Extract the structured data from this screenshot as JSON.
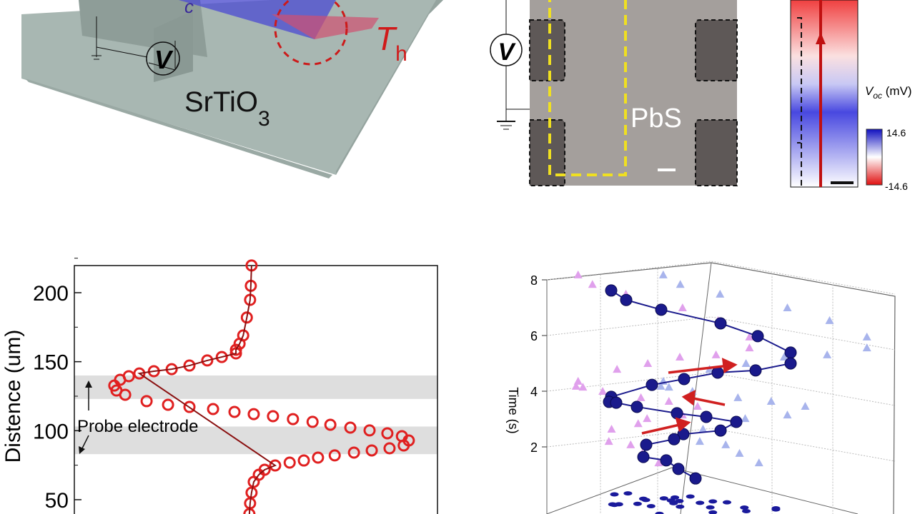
{
  "panel_a": {
    "substrate_label": "SrTiO",
    "substrate_sub": "3",
    "voltmeter": "V",
    "hot_label": "T",
    "hot_sub": "h",
    "cold_sub": "c"
  },
  "panel_b": {
    "material_label": "PbS",
    "voltmeter": "V"
  },
  "panel_c": {
    "colorbar_label_v": "V",
    "colorbar_label_sub": "oc",
    "colorbar_label_unit": " (mV)",
    "colorbar_max": "14.6",
    "colorbar_min": "-14.6",
    "colors": {
      "max": "#1010c0",
      "mid": "#ffffff",
      "min": "#e01010"
    }
  },
  "chart_data": [
    {
      "type": "scatter",
      "ylabel": "Distence (um)",
      "yticks": [
        "50",
        "100",
        "150",
        "200"
      ],
      "ylim": [
        35,
        220
      ],
      "xlim": [
        0,
        100
      ],
      "annotation": "Probe electrode",
      "bands": [
        [
          123,
          140
        ],
        [
          83,
          103
        ]
      ],
      "marker_color": "#e02020",
      "line_color": "#8a1010",
      "points": [
        [
          48.8,
          219.7
        ],
        [
          48.6,
          205
        ],
        [
          48.4,
          194.8
        ],
        [
          47.5,
          182
        ],
        [
          46.5,
          169
        ],
        [
          45.5,
          163
        ],
        [
          44.5,
          158.6
        ],
        [
          44.5,
          156
        ],
        [
          40.6,
          153.4
        ],
        [
          36.6,
          150.9
        ],
        [
          31.7,
          147.2
        ],
        [
          26.8,
          144.6
        ],
        [
          21.9,
          143.1
        ],
        [
          17.9,
          141.5
        ],
        [
          15,
          139.5
        ],
        [
          12.6,
          136.9
        ],
        [
          11,
          132.7
        ],
        [
          11.6,
          129.1
        ],
        [
          14,
          126
        ],
        [
          19.9,
          121.4
        ],
        [
          25.8,
          118.8
        ],
        [
          31.7,
          117.2
        ],
        [
          38.2,
          115.7
        ],
        [
          44.1,
          113.6
        ],
        [
          49.4,
          112
        ],
        [
          54.7,
          110.5
        ],
        [
          60.2,
          108.4
        ],
        [
          65.6,
          106.4
        ],
        [
          70.5,
          104.3
        ],
        [
          76,
          102.2
        ],
        [
          81.3,
          100.2
        ],
        [
          86.2,
          98.1
        ],
        [
          90.2,
          96
        ],
        [
          92.1,
          92.9
        ],
        [
          90.7,
          89.3
        ],
        [
          86.8,
          87.2
        ],
        [
          81.9,
          85.7
        ],
        [
          77,
          84.1
        ],
        [
          71.7,
          82.1
        ],
        [
          67.1,
          80.5
        ],
        [
          63.2,
          78.4
        ],
        [
          59.3,
          76.9
        ],
        [
          55.3,
          74.8
        ],
        [
          52.4,
          71.7
        ],
        [
          50.8,
          68.1
        ],
        [
          49.4,
          62.9
        ],
        [
          48.8,
          55.1
        ],
        [
          48.4,
          47.4
        ],
        [
          48.2,
          39.6
        ]
      ]
    },
    {
      "type": "scatter3d",
      "zlabel": "Time (s)",
      "zticks": [
        "2",
        "4",
        "6",
        "8"
      ],
      "zlim": [
        0,
        8.5
      ],
      "marker_color": "#1a1a8c",
      "path": [
        [
          23.75,
          8.13
        ],
        [
          29,
          7.79
        ],
        [
          41.25,
          7.44
        ],
        [
          62,
          6.95
        ],
        [
          75,
          6.49
        ],
        [
          86.5,
          5.9
        ],
        [
          86.5,
          5.51
        ],
        [
          74.25,
          5.26
        ],
        [
          61,
          5.18
        ],
        [
          49.25,
          4.95
        ],
        [
          38,
          4.74
        ],
        [
          23.75,
          4.31
        ],
        [
          23,
          4.13
        ],
        [
          25.5,
          4.1
        ],
        [
          32.75,
          3.95
        ],
        [
          46.75,
          3.72
        ],
        [
          57,
          3.59
        ],
        [
          67.5,
          3.41
        ],
        [
          62,
          3.1
        ],
        [
          49,
          2.97
        ],
        [
          45.75,
          2.79
        ],
        [
          36,
          2.59
        ],
        [
          35,
          2.15
        ],
        [
          43,
          2.03
        ],
        [
          47.25,
          1.72
        ],
        [
          53.25,
          1.38
        ]
      ]
    }
  ]
}
